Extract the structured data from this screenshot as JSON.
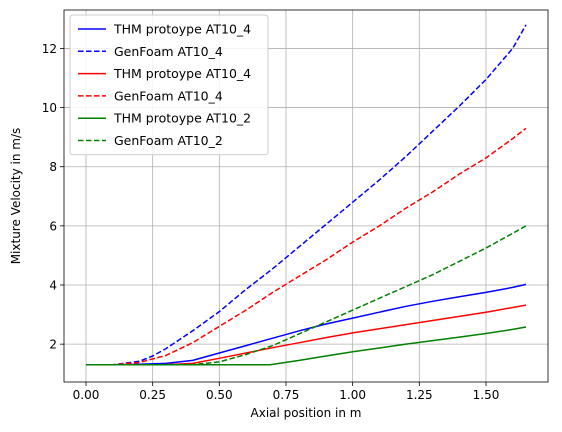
{
  "chart_data": {
    "type": "line",
    "xlabel": "Axial position in m",
    "ylabel": "Mixture Velocity in m/s",
    "xlim": [
      -0.0825,
      1.7325
    ],
    "ylim": [
      0.72,
      13.3
    ],
    "xticks": [
      "0.00",
      "0.25",
      "0.50",
      "0.75",
      "1.00",
      "1.25",
      "1.50"
    ],
    "yticks": [
      "2",
      "4",
      "6",
      "8",
      "10",
      "12"
    ],
    "grid": true,
    "legend_position": "top-left",
    "series": [
      {
        "name": "THM protoype AT10_4",
        "color": "#0000ff",
        "style": "solid",
        "x": [
          0.0,
          0.1,
          0.2,
          0.3,
          0.4,
          0.5,
          0.6,
          0.7,
          0.8,
          0.9,
          1.0,
          1.1,
          1.2,
          1.3,
          1.4,
          1.5,
          1.6,
          1.65
        ],
        "y": [
          1.3,
          1.3,
          1.32,
          1.35,
          1.45,
          1.7,
          1.95,
          2.2,
          2.45,
          2.68,
          2.88,
          3.08,
          3.28,
          3.45,
          3.6,
          3.75,
          3.92,
          4.02
        ]
      },
      {
        "name": "GenFoam AT10_4",
        "color": "#0000ff",
        "style": "dashed",
        "x": [
          0.0,
          0.1,
          0.2,
          0.25,
          0.3,
          0.4,
          0.5,
          0.6,
          0.7,
          0.8,
          0.9,
          1.0,
          1.1,
          1.2,
          1.3,
          1.4,
          1.5,
          1.6,
          1.65
        ],
        "y": [
          1.3,
          1.3,
          1.42,
          1.6,
          1.85,
          2.45,
          3.1,
          3.85,
          4.55,
          5.3,
          6.05,
          6.8,
          7.55,
          8.35,
          9.2,
          10.05,
          10.95,
          12.0,
          12.8
        ]
      },
      {
        "name": "THM protoype AT10_4",
        "color": "#ff0000",
        "style": "solid",
        "x": [
          0.0,
          0.1,
          0.2,
          0.3,
          0.4,
          0.5,
          0.6,
          0.7,
          0.8,
          0.9,
          1.0,
          1.1,
          1.2,
          1.3,
          1.4,
          1.5,
          1.6,
          1.65
        ],
        "y": [
          1.3,
          1.3,
          1.3,
          1.31,
          1.35,
          1.52,
          1.7,
          1.88,
          2.05,
          2.22,
          2.38,
          2.52,
          2.66,
          2.8,
          2.94,
          3.08,
          3.24,
          3.32
        ]
      },
      {
        "name": "GenFoam AT10_4",
        "color": "#ff0000",
        "style": "dashed",
        "x": [
          0.0,
          0.1,
          0.2,
          0.3,
          0.4,
          0.5,
          0.6,
          0.7,
          0.8,
          0.9,
          1.0,
          1.1,
          1.2,
          1.3,
          1.4,
          1.5,
          1.6,
          1.65
        ],
        "y": [
          1.3,
          1.3,
          1.38,
          1.62,
          2.05,
          2.6,
          3.15,
          3.75,
          4.3,
          4.85,
          5.45,
          6.0,
          6.6,
          7.15,
          7.75,
          8.3,
          8.95,
          9.3
        ]
      },
      {
        "name": "THM protoype AT10_2",
        "color": "#008000",
        "style": "solid",
        "x": [
          0.0,
          0.2,
          0.4,
          0.6,
          0.69,
          0.8,
          0.9,
          1.0,
          1.1,
          1.2,
          1.3,
          1.4,
          1.5,
          1.6,
          1.65
        ],
        "y": [
          1.3,
          1.3,
          1.3,
          1.3,
          1.3,
          1.45,
          1.6,
          1.74,
          1.87,
          2.0,
          2.12,
          2.24,
          2.36,
          2.5,
          2.58
        ]
      },
      {
        "name": "GenFoam AT10_2",
        "color": "#008000",
        "style": "dashed",
        "x": [
          0.0,
          0.2,
          0.4,
          0.5,
          0.6,
          0.7,
          0.8,
          0.9,
          1.0,
          1.1,
          1.2,
          1.3,
          1.4,
          1.5,
          1.6,
          1.65
        ],
        "y": [
          1.3,
          1.3,
          1.31,
          1.4,
          1.65,
          1.95,
          2.35,
          2.75,
          3.15,
          3.55,
          3.95,
          4.35,
          4.8,
          5.25,
          5.75,
          6.0
        ]
      }
    ]
  }
}
